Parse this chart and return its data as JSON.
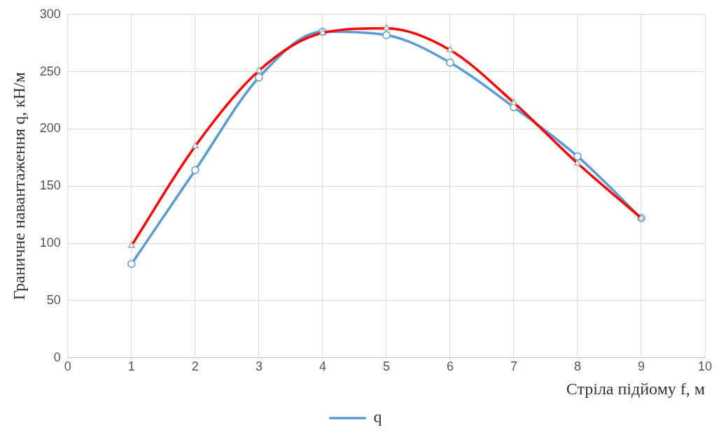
{
  "chart_data": {
    "type": "line",
    "xlabel": "Стріла підйому f, м",
    "ylabel": "Граничне навантаження q, кН/м",
    "x": [
      1,
      2,
      3,
      4,
      5,
      6,
      7,
      8,
      9
    ],
    "series": [
      {
        "name": "q",
        "color": "#5b9bd5",
        "marker": "circle",
        "values": [
          82,
          164,
          245,
          285,
          282,
          258,
          219,
          176,
          122
        ]
      },
      {
        "color": "#ff0000",
        "marker": "triangle",
        "values": [
          98,
          185,
          251,
          284,
          288,
          269,
          223,
          170,
          122
        ]
      }
    ],
    "xlim": [
      0,
      10
    ],
    "xticks": [
      0,
      1,
      2,
      3,
      4,
      5,
      6,
      7,
      8,
      9,
      10
    ],
    "ylim": [
      0,
      300
    ],
    "yticks": [
      0,
      50,
      100,
      150,
      200,
      250,
      300
    ],
    "grid": true,
    "legend": "bottom"
  }
}
